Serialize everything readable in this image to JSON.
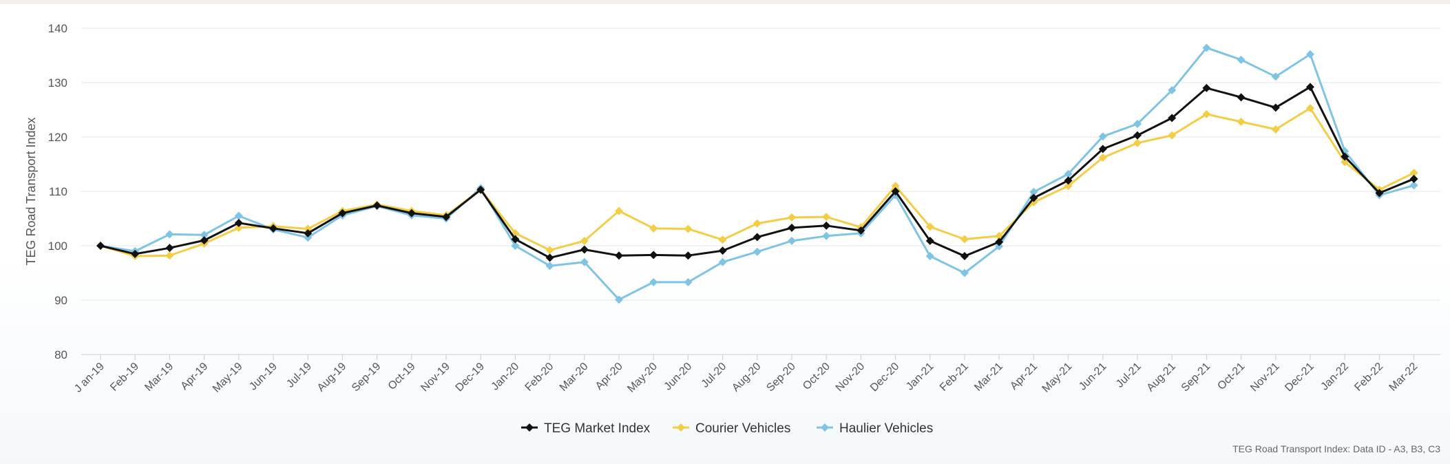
{
  "chart_data": {
    "type": "line",
    "title": "",
    "xlabel": "",
    "ylabel": "TEG Road Transport Index",
    "ylim": [
      80,
      140
    ],
    "yticks": [
      80,
      90,
      100,
      110,
      120,
      130,
      140
    ],
    "grid": true,
    "legend_position": "bottom-center",
    "categories": [
      "J an-19",
      "Feb-19",
      "Mar-19",
      "Apr-19",
      "May-19",
      "Jun-19",
      "Jul-19",
      "Aug-19",
      "Sep-19",
      "Oct-19",
      "Nov-19",
      "Dec-19",
      "Jan-20",
      "Feb-20",
      "Mar-20",
      "Apr-20",
      "May-20",
      "Jun-20",
      "Jul-20",
      "Aug-20",
      "Sep-20",
      "Oct-20",
      "Nov-20",
      "Dec-20",
      "Jan-21",
      "Feb-21",
      "Mar-21",
      "Apr-21",
      "May-21",
      "Jun-21",
      "Jul-21",
      "Aug-21",
      "Sep-21",
      "Oct-21",
      "Nov-21",
      "Dec-21",
      "Jan-22",
      "Feb-22",
      "Mar-22"
    ],
    "series": [
      {
        "name": "TEG Market Index",
        "color": "#111111",
        "values": [
          100,
          98.5,
          99.6,
          101,
          104.2,
          103.2,
          102.3,
          106,
          107.4,
          106,
          105.3,
          110.3,
          101.2,
          97.8,
          99.3,
          98.2,
          98.3,
          98.2,
          99.1,
          101.6,
          103.3,
          103.7,
          102.8,
          110,
          100.9,
          98.1,
          100.7,
          108.8,
          112,
          117.8,
          120.3,
          123.5,
          129,
          127.3,
          125.4,
          129.2,
          116.4,
          109.7,
          112.3
        ]
      },
      {
        "name": "Courier Vehicles",
        "color": "#f2cd45",
        "values": [
          100,
          98.1,
          98.2,
          100.4,
          103.3,
          103.6,
          103.1,
          106.4,
          107.6,
          106.4,
          105.6,
          110.3,
          102.3,
          99.2,
          100.9,
          106.4,
          103.2,
          103.1,
          101.1,
          104.1,
          105.2,
          105.3,
          103.4,
          111,
          103.5,
          101.2,
          101.8,
          108,
          111,
          116.2,
          118.9,
          120.3,
          124.2,
          122.8,
          121.4,
          125.3,
          115.4,
          110.3,
          113.4
        ]
      },
      {
        "name": "Haulier Vehicles",
        "color": "#7ec4e4",
        "values": [
          100,
          99,
          102.1,
          102,
          105.5,
          103,
          101.5,
          105.6,
          107.3,
          105.6,
          105,
          110.6,
          100,
          96.3,
          97,
          90.1,
          93.3,
          93.3,
          97,
          98.9,
          100.9,
          101.8,
          102.3,
          109.3,
          98.1,
          95,
          99.9,
          109.9,
          113.2,
          120.1,
          122.4,
          128.6,
          136.4,
          134.2,
          131.1,
          135.2,
          117.4,
          109.3,
          111.1
        ]
      }
    ],
    "source_note": "TEG Road Transport Index: Data ID - A3, B3, C3"
  }
}
